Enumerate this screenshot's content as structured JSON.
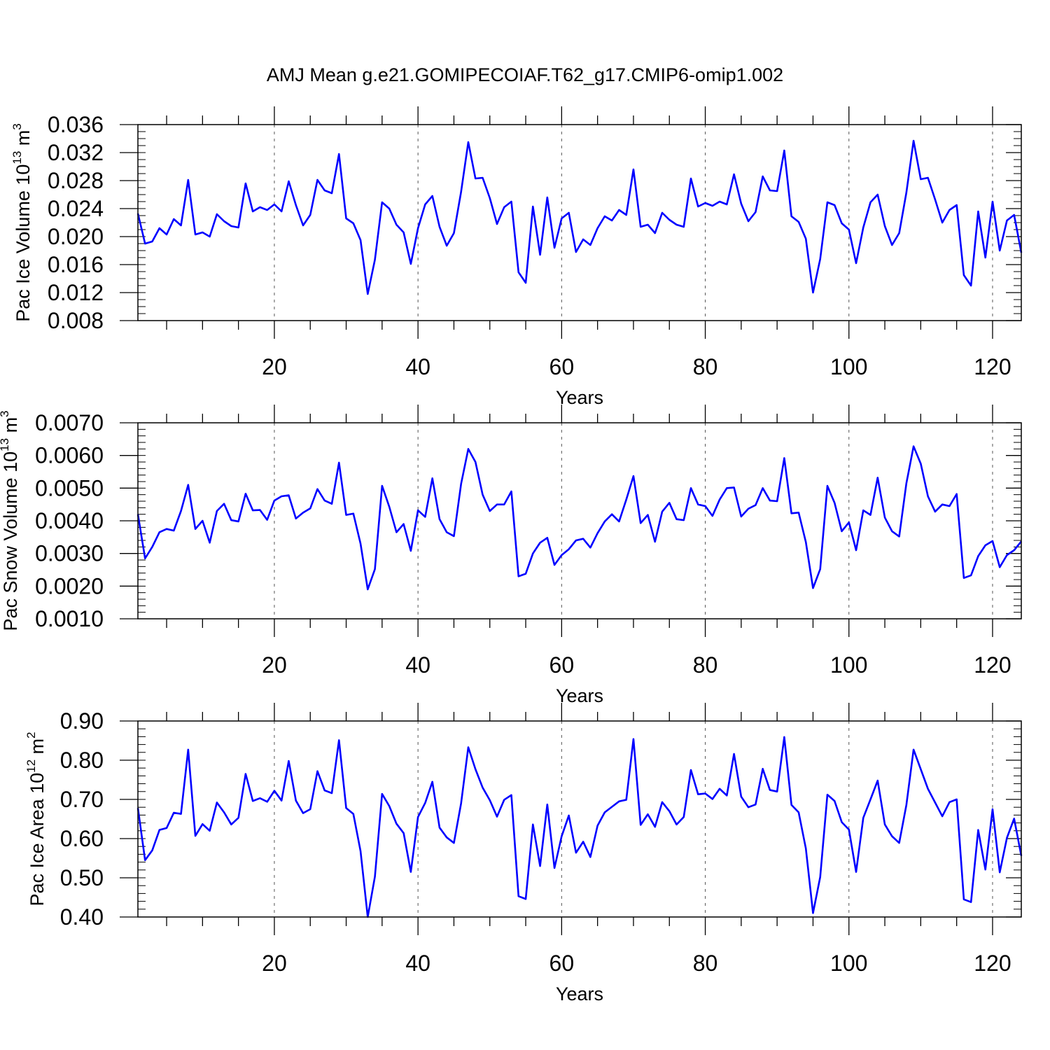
{
  "figure": {
    "title": "AMJ Mean g.e21.GOMIPECOIAF.T62_g17.CMIP6-omip1.002"
  },
  "chart_data": [
    {
      "type": "line",
      "ylabel": {
        "base": "Pac Ice Volume 10",
        "exp": "13",
        "unit": " m",
        "unit_exp": "3"
      },
      "xlabel": "Years",
      "xlim": [
        1,
        124
      ],
      "ylim": [
        0.008,
        0.036
      ],
      "x_ticks": [
        20,
        40,
        60,
        80,
        100,
        120
      ],
      "x_tick_labels": [
        "20",
        "40",
        "60",
        "80",
        "100",
        "120"
      ],
      "y_ticks": [
        0.008,
        0.012,
        0.016,
        0.02,
        0.024,
        0.028,
        0.032,
        0.036
      ],
      "y_tick_labels": [
        "0.008",
        "0.012",
        "0.016",
        "0.020",
        "0.024",
        "0.028",
        "0.032",
        "0.036"
      ],
      "y_minor_step": 0.001,
      "line_color": "#0000ff",
      "grid": "vertical dashed at major x ticks",
      "x_start": 1,
      "values": [
        0.0233,
        0.019,
        0.0193,
        0.0212,
        0.0203,
        0.0225,
        0.0216,
        0.0281,
        0.0203,
        0.0206,
        0.02,
        0.0232,
        0.0222,
        0.0215,
        0.0213,
        0.0276,
        0.0236,
        0.0242,
        0.0238,
        0.0246,
        0.0236,
        0.0279,
        0.0245,
        0.0216,
        0.0231,
        0.0281,
        0.0266,
        0.0262,
        0.0318,
        0.0226,
        0.0219,
        0.0195,
        0.0118,
        0.0167,
        0.0249,
        0.024,
        0.0217,
        0.0206,
        0.0161,
        0.0212,
        0.0246,
        0.0258,
        0.0214,
        0.0187,
        0.0205,
        0.0264,
        0.0335,
        0.0283,
        0.0284,
        0.0255,
        0.0218,
        0.0242,
        0.025,
        0.0149,
        0.0134,
        0.0243,
        0.0174,
        0.0256,
        0.0184,
        0.0226,
        0.0234,
        0.0178,
        0.0196,
        0.0188,
        0.0212,
        0.0229,
        0.0223,
        0.0238,
        0.0231,
        0.0296,
        0.0214,
        0.0217,
        0.0205,
        0.0234,
        0.0224,
        0.0217,
        0.0214,
        0.0283,
        0.0243,
        0.0248,
        0.0244,
        0.025,
        0.0246,
        0.0289,
        0.0247,
        0.0222,
        0.0235,
        0.0286,
        0.0266,
        0.0265,
        0.0323,
        0.0229,
        0.0221,
        0.0197,
        0.012,
        0.0168,
        0.0249,
        0.0245,
        0.0219,
        0.021,
        0.0162,
        0.0213,
        0.0249,
        0.026,
        0.0215,
        0.0188,
        0.0205,
        0.0263,
        0.0337,
        0.0282,
        0.0284,
        0.0253,
        0.022,
        0.0238,
        0.0245,
        0.0145,
        0.013,
        0.0236,
        0.017,
        0.025,
        0.018,
        0.0223,
        0.0231,
        0.0177
      ]
    },
    {
      "type": "line",
      "ylabel": {
        "base": "Pac Snow Volume 10",
        "exp": "13",
        "unit": " m",
        "unit_exp": "3"
      },
      "xlabel": "Years",
      "xlim": [
        1,
        124
      ],
      "ylim": [
        0.001,
        0.007
      ],
      "x_ticks": [
        20,
        40,
        60,
        80,
        100,
        120
      ],
      "x_tick_labels": [
        "20",
        "40",
        "60",
        "80",
        "100",
        "120"
      ],
      "y_ticks": [
        0.001,
        0.002,
        0.003,
        0.004,
        0.005,
        0.006,
        0.007
      ],
      "y_tick_labels": [
        "0.0010",
        "0.0020",
        "0.0030",
        "0.0040",
        "0.0050",
        "0.0060",
        "0.0070"
      ],
      "y_minor_step": 0.0002,
      "line_color": "#0000ff",
      "grid": "vertical dashed at major x ticks",
      "x_start": 1,
      "values": [
        0.0042,
        0.00285,
        0.0032,
        0.00365,
        0.00375,
        0.0037,
        0.0043,
        0.0051,
        0.00375,
        0.004,
        0.00333,
        0.0043,
        0.00452,
        0.00402,
        0.00398,
        0.00483,
        0.00432,
        0.00433,
        0.00403,
        0.00462,
        0.00475,
        0.00478,
        0.00407,
        0.00425,
        0.00438,
        0.00497,
        0.00462,
        0.00452,
        0.00578,
        0.00418,
        0.00422,
        0.0033,
        0.0019,
        0.00252,
        0.00507,
        0.00443,
        0.00365,
        0.0039,
        0.00308,
        0.00432,
        0.00412,
        0.0053,
        0.00405,
        0.00365,
        0.00353,
        0.00513,
        0.0062,
        0.0058,
        0.0048,
        0.0043,
        0.0045,
        0.0045,
        0.0049,
        0.0023,
        0.00238,
        0.003,
        0.00333,
        0.00348,
        0.00265,
        0.00295,
        0.00313,
        0.0034,
        0.00345,
        0.00318,
        0.00362,
        0.00398,
        0.0042,
        0.00398,
        0.00465,
        0.00537,
        0.00393,
        0.00418,
        0.00336,
        0.00428,
        0.00455,
        0.00405,
        0.00402,
        0.005,
        0.0045,
        0.00445,
        0.00415,
        0.00465,
        0.005,
        0.00502,
        0.00413,
        0.00437,
        0.00448,
        0.005,
        0.00462,
        0.0046,
        0.00592,
        0.00423,
        0.00425,
        0.00335,
        0.00194,
        0.00252,
        0.00507,
        0.00455,
        0.00368,
        0.00395,
        0.0031,
        0.00432,
        0.00418,
        0.00532,
        0.0041,
        0.00368,
        0.00352,
        0.00515,
        0.00628,
        0.00575,
        0.00475,
        0.00428,
        0.0045,
        0.00445,
        0.00482,
        0.00225,
        0.00233,
        0.00292,
        0.00325,
        0.00338,
        0.00258,
        0.00295,
        0.0031,
        0.00337
      ]
    },
    {
      "type": "line",
      "ylabel": {
        "base": "Pac Ice Area 10",
        "exp": "12",
        "unit": " m",
        "unit_exp": "2"
      },
      "xlabel": "Years",
      "xlim": [
        1,
        124
      ],
      "ylim": [
        0.4,
        0.9
      ],
      "x_ticks": [
        20,
        40,
        60,
        80,
        100,
        120
      ],
      "x_tick_labels": [
        "20",
        "40",
        "60",
        "80",
        "100",
        "120"
      ],
      "y_ticks": [
        0.4,
        0.5,
        0.6,
        0.7,
        0.8,
        0.9
      ],
      "y_tick_labels": [
        "0.40",
        "0.50",
        "0.60",
        "0.70",
        "0.80",
        "0.90"
      ],
      "y_minor_step": 0.02,
      "line_color": "#0000ff",
      "grid": "vertical dashed at major x ticks",
      "x_start": 1,
      "values": [
        0.678,
        0.545,
        0.57,
        0.622,
        0.627,
        0.666,
        0.663,
        0.827,
        0.607,
        0.637,
        0.62,
        0.692,
        0.667,
        0.636,
        0.653,
        0.765,
        0.696,
        0.703,
        0.694,
        0.722,
        0.697,
        0.798,
        0.697,
        0.665,
        0.675,
        0.772,
        0.723,
        0.716,
        0.851,
        0.678,
        0.663,
        0.568,
        0.4,
        0.503,
        0.714,
        0.683,
        0.638,
        0.614,
        0.515,
        0.655,
        0.691,
        0.745,
        0.628,
        0.603,
        0.589,
        0.69,
        0.833,
        0.777,
        0.73,
        0.698,
        0.656,
        0.699,
        0.711,
        0.453,
        0.446,
        0.636,
        0.53,
        0.687,
        0.525,
        0.606,
        0.659,
        0.564,
        0.592,
        0.553,
        0.633,
        0.667,
        0.681,
        0.695,
        0.699,
        0.854,
        0.635,
        0.662,
        0.63,
        0.693,
        0.67,
        0.636,
        0.655,
        0.775,
        0.713,
        0.715,
        0.701,
        0.727,
        0.71,
        0.816,
        0.707,
        0.68,
        0.687,
        0.778,
        0.724,
        0.72,
        0.859,
        0.686,
        0.667,
        0.575,
        0.41,
        0.502,
        0.712,
        0.696,
        0.642,
        0.623,
        0.515,
        0.653,
        0.7,
        0.748,
        0.636,
        0.606,
        0.589,
        0.686,
        0.827,
        0.777,
        0.727,
        0.692,
        0.657,
        0.693,
        0.7,
        0.445,
        0.438,
        0.622,
        0.521,
        0.675,
        0.514,
        0.602,
        0.651,
        0.556
      ]
    }
  ]
}
